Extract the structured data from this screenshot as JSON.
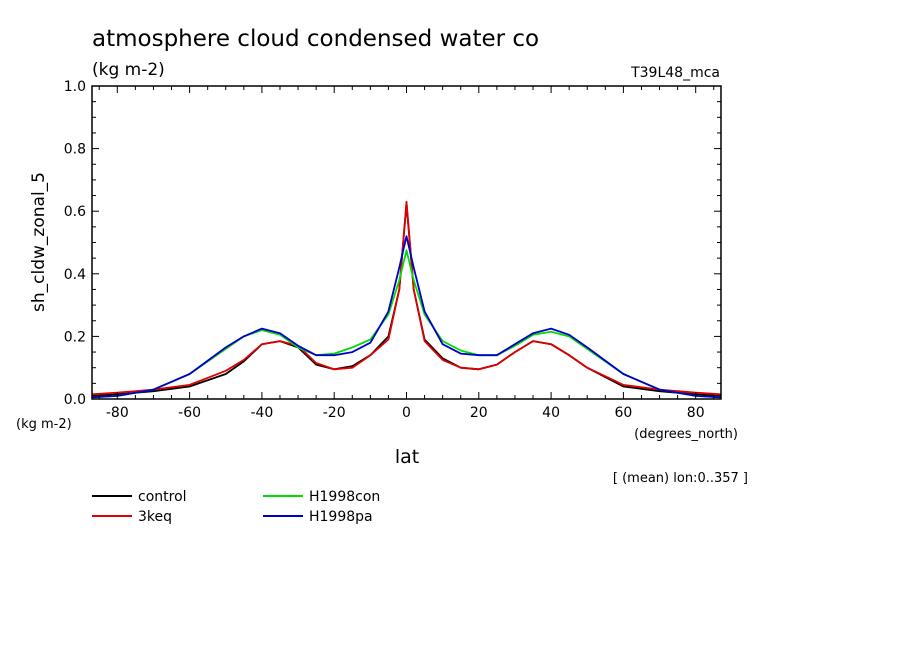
{
  "chart_data": {
    "type": "line",
    "title": "atmosphere cloud condensed water co",
    "subtitle_units": "(kg m-2)",
    "model_label": "T39L48_mca",
    "ylabel": "sh_cldw_zonal_5",
    "yunits": "(kg m-2)",
    "xlabel": "lat",
    "xunits": "(degrees_north)",
    "footnote": "[ (mean) lon:0..357 ]",
    "xlim": [
      -87,
      87
    ],
    "ylim": [
      0,
      1.0
    ],
    "xticks": [
      -80,
      -60,
      -40,
      -20,
      0,
      20,
      40,
      60,
      80
    ],
    "xtick_labels": [
      "-80",
      "-60",
      "-40",
      "-20",
      "0",
      "20",
      "40",
      "60",
      "80"
    ],
    "yticks": [
      0,
      0.2,
      0.4,
      0.6,
      0.8,
      1.0
    ],
    "ytick_labels": [
      "0.0",
      "0.2",
      "0.4",
      "0.6",
      "0.8",
      "1.0"
    ],
    "grid": false,
    "legend_position": "bottom-left",
    "series": [
      {
        "name": "control",
        "color": "#000000",
        "x": [
          -87,
          -80,
          -70,
          -60,
          -50,
          -45,
          -40,
          -35,
          -30,
          -25,
          -20,
          -15,
          -10,
          -5,
          -2,
          0,
          2,
          5,
          10,
          15,
          20,
          25,
          30,
          35,
          40,
          45,
          50,
          60,
          70,
          80,
          87
        ],
        "y": [
          0.01,
          0.015,
          0.025,
          0.04,
          0.08,
          0.12,
          0.175,
          0.185,
          0.165,
          0.11,
          0.095,
          0.105,
          0.14,
          0.2,
          0.35,
          0.625,
          0.35,
          0.19,
          0.13,
          0.1,
          0.095,
          0.11,
          0.15,
          0.185,
          0.175,
          0.14,
          0.1,
          0.04,
          0.025,
          0.015,
          0.01
        ]
      },
      {
        "name": "3keq",
        "color": "#e00000",
        "x": [
          -87,
          -80,
          -70,
          -60,
          -50,
          -45,
          -40,
          -35,
          -30,
          -25,
          -20,
          -15,
          -10,
          -5,
          -2,
          0,
          2,
          5,
          10,
          15,
          20,
          25,
          30,
          35,
          40,
          45,
          50,
          60,
          70,
          80,
          87
        ],
        "y": [
          0.015,
          0.02,
          0.03,
          0.045,
          0.09,
          0.125,
          0.175,
          0.185,
          0.17,
          0.115,
          0.095,
          0.1,
          0.14,
          0.19,
          0.35,
          0.63,
          0.35,
          0.185,
          0.125,
          0.1,
          0.095,
          0.11,
          0.15,
          0.185,
          0.175,
          0.14,
          0.1,
          0.045,
          0.03,
          0.02,
          0.015
        ]
      },
      {
        "name": "H1998con",
        "color": "#00dd00",
        "x": [
          -87,
          -80,
          -70,
          -60,
          -50,
          -45,
          -40,
          -35,
          -30,
          -25,
          -20,
          -15,
          -10,
          -5,
          -2,
          0,
          2,
          5,
          10,
          15,
          20,
          25,
          30,
          35,
          40,
          45,
          50,
          60,
          70,
          80,
          87
        ],
        "y": [
          0.005,
          0.01,
          0.03,
          0.08,
          0.16,
          0.2,
          0.22,
          0.205,
          0.165,
          0.14,
          0.145,
          0.165,
          0.19,
          0.27,
          0.38,
          0.475,
          0.38,
          0.27,
          0.185,
          0.155,
          0.14,
          0.14,
          0.17,
          0.205,
          0.215,
          0.2,
          0.16,
          0.08,
          0.03,
          0.01,
          0.005
        ]
      },
      {
        "name": "H1998pa",
        "color": "#0000cc",
        "x": [
          -87,
          -80,
          -70,
          -60,
          -50,
          -45,
          -40,
          -35,
          -30,
          -25,
          -20,
          -15,
          -10,
          -5,
          -2,
          0,
          2,
          5,
          10,
          15,
          20,
          25,
          30,
          35,
          40,
          45,
          50,
          60,
          70,
          80,
          87
        ],
        "y": [
          0.005,
          0.01,
          0.03,
          0.08,
          0.165,
          0.2,
          0.225,
          0.21,
          0.17,
          0.14,
          0.14,
          0.15,
          0.18,
          0.28,
          0.42,
          0.52,
          0.42,
          0.28,
          0.175,
          0.145,
          0.14,
          0.14,
          0.175,
          0.21,
          0.225,
          0.205,
          0.165,
          0.08,
          0.03,
          0.01,
          0.005
        ]
      }
    ]
  }
}
